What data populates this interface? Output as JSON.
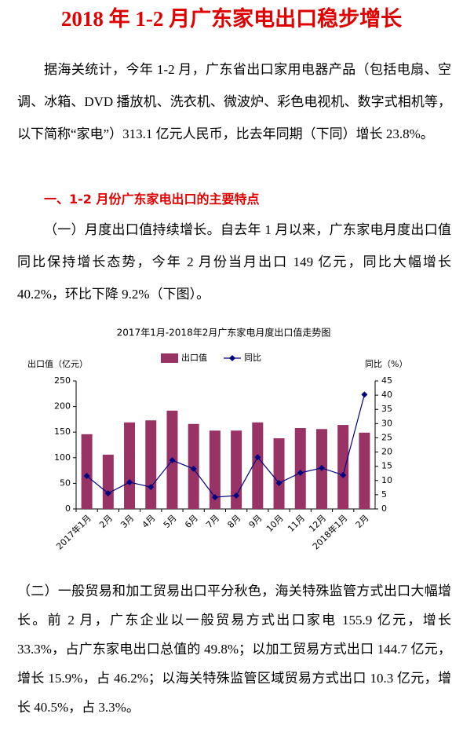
{
  "header": {
    "title": "2018 年 1-2 月广东家电出口稳步增长"
  },
  "paragraphs": [
    "据海关统计，今年 1-2 月，广东省出口家用电器产品（包括电扇、空调、冰箱、DVD 播放机、洗衣机、微波炉、彩色电视机、数字式相机等，以下简称“家电”）313.1 亿元人民币，比去年同期（下同）增长 23.8%。",
    "（一）月度出口值持续增长。自去年 1 月以来，广东家电月度出口值同比保持增长态势，今年 2 月份当月出口 149 亿元，同比大幅增长 40.2%，环比下降 9.2%（下图）。",
    "（二）一般贸易和加工贸易出口平分秋色，海关特殊监管方式出口大幅增长。前 2 月，广东企业以一般贸易方式出口家电 155.9 亿元，增长 33.3%，占广东家电出口总值的 49.8%；以加工贸易方式出口 144.7 亿元，增长 15.9%，占 46.2%；以海关特殊监管区域贸易方式出口 10.3 亿元，增长 40.5%，占 3.3%。"
  ],
  "section_heading": "一、1-2 月份广东家电出口的主要特点",
  "chart_data": {
    "type": "bar",
    "title": "2017年1月-2018年2月广东家电月度出口值走势图",
    "y_label": "出口值（亿元）",
    "y2_label": "同比（%）",
    "categories": [
      "2017年1月",
      "2月",
      "3月",
      "4月",
      "5月",
      "6月",
      "7月",
      "8月",
      "9月",
      "10月",
      "11月",
      "12月",
      "2018年1月",
      "2月"
    ],
    "series": [
      {
        "name": "出口值",
        "type": "bar",
        "color": "#993366",
        "values": [
          146,
          106,
          169,
          173,
          192,
          166,
          153,
          153,
          169,
          138,
          158,
          156,
          164,
          149
        ]
      },
      {
        "name": "同比",
        "type": "line",
        "axis": "y2",
        "color": "#000080",
        "values": [
          11.6,
          5.5,
          9.4,
          7.7,
          17.1,
          14.1,
          4.1,
          4.7,
          18.2,
          9.1,
          12.7,
          14.4,
          11.9,
          40.2
        ]
      }
    ],
    "ylim": [
      0,
      250
    ],
    "yticks": [
      0,
      50,
      100,
      150,
      200,
      250
    ],
    "y2lim": [
      0,
      45
    ],
    "y2ticks": [
      0,
      5,
      10,
      15,
      20,
      25,
      30,
      35,
      40,
      45
    ]
  }
}
